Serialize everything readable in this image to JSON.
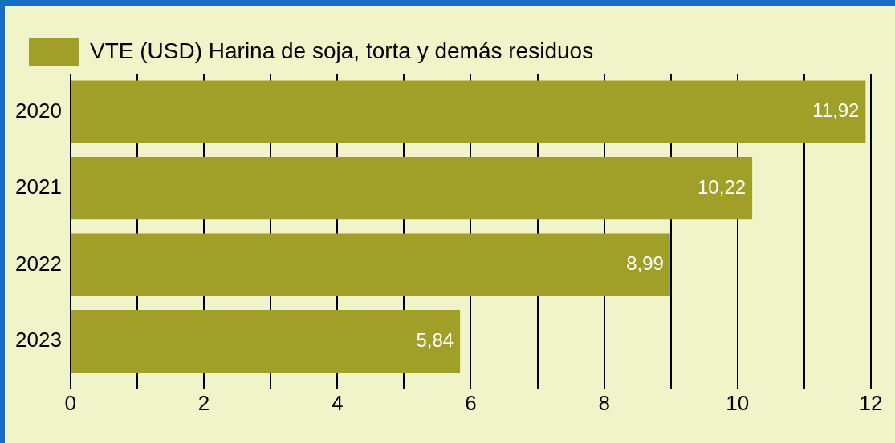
{
  "chart_data": {
    "type": "bar",
    "orientation": "horizontal",
    "categories": [
      "2020",
      "2021",
      "2022",
      "2023"
    ],
    "series": [
      {
        "name": "VTE (USD) Harina de soja, torta y demás residuos",
        "color": "#a0a028",
        "values": [
          11.92,
          10.22,
          8.99,
          5.84
        ],
        "value_labels": [
          "11,92",
          "10,22",
          "8,99",
          "5,84"
        ]
      }
    ],
    "xlim": [
      0,
      12
    ],
    "xticks": [
      0,
      {
        "value": 1,
        "label": null
      },
      2,
      {
        "value": 3,
        "label": null
      },
      4,
      {
        "value": 5,
        "label": null
      },
      6,
      {
        "value": 7,
        "label": null
      },
      8,
      {
        "value": 9,
        "label": null
      },
      10,
      {
        "value": 11,
        "label": null
      },
      12
    ],
    "grid": "x",
    "legend": "top left"
  }
}
